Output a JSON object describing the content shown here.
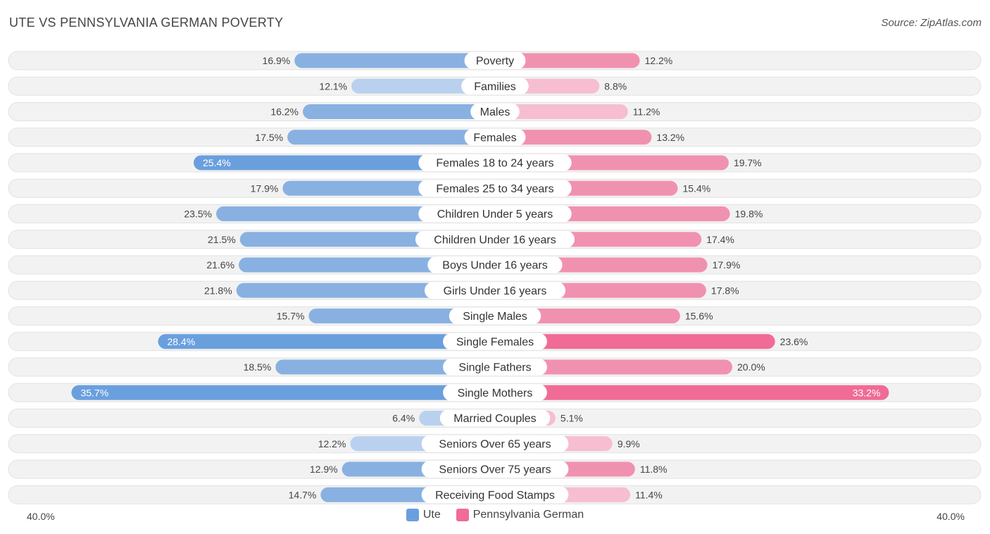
{
  "header": {
    "title": "UTE VS PENNSYLVANIA GERMAN POVERTY",
    "source": "Source: ZipAtlas.com"
  },
  "colors": {
    "ute": "#6a9fde",
    "ute_light": "#a9c8ee",
    "pa_german": "#f06b96",
    "pa_german_light": "#f7a9c2",
    "row_bg": "#f2f2f2"
  },
  "axis": {
    "left_label": "40.0%",
    "right_label": "40.0%"
  },
  "legend": [
    {
      "name": "Ute",
      "color": "#6a9fde"
    },
    {
      "name": "Pennsylvania German",
      "color": "#f06b96"
    }
  ],
  "chart_data": {
    "type": "bar",
    "orientation": "horizontal-diverging",
    "title": "UTE VS PENNSYLVANIA GERMAN POVERTY",
    "xlim": [
      -40,
      40
    ],
    "categories": [
      "Poverty",
      "Families",
      "Males",
      "Females",
      "Females 18 to 24 years",
      "Females 25 to 34 years",
      "Children Under 5 years",
      "Children Under 16 years",
      "Boys Under 16 years",
      "Girls Under 16 years",
      "Single Males",
      "Single Females",
      "Single Fathers",
      "Single Mothers",
      "Married Couples",
      "Seniors Over 65 years",
      "Seniors Over 75 years",
      "Receiving Food Stamps"
    ],
    "series": [
      {
        "name": "Ute",
        "values": [
          16.9,
          12.1,
          16.2,
          17.5,
          25.4,
          17.9,
          23.5,
          21.5,
          21.6,
          21.8,
          15.7,
          28.4,
          18.5,
          35.7,
          6.4,
          12.2,
          12.9,
          14.7
        ],
        "labels": [
          "16.9%",
          "12.1%",
          "16.2%",
          "17.5%",
          "25.4%",
          "17.9%",
          "23.5%",
          "21.5%",
          "21.6%",
          "21.8%",
          "15.7%",
          "28.4%",
          "18.5%",
          "35.7%",
          "6.4%",
          "12.2%",
          "12.9%",
          "14.7%"
        ]
      },
      {
        "name": "Pennsylvania German",
        "values": [
          12.2,
          8.8,
          11.2,
          13.2,
          19.7,
          15.4,
          19.8,
          17.4,
          17.9,
          17.8,
          15.6,
          23.6,
          20.0,
          33.2,
          5.1,
          9.9,
          11.8,
          11.4
        ],
        "labels": [
          "12.2%",
          "8.8%",
          "11.2%",
          "13.2%",
          "19.7%",
          "15.4%",
          "19.8%",
          "17.4%",
          "17.9%",
          "17.8%",
          "15.6%",
          "23.6%",
          "20.0%",
          "33.2%",
          "5.1%",
          "9.9%",
          "11.8%",
          "11.4%"
        ]
      }
    ]
  }
}
